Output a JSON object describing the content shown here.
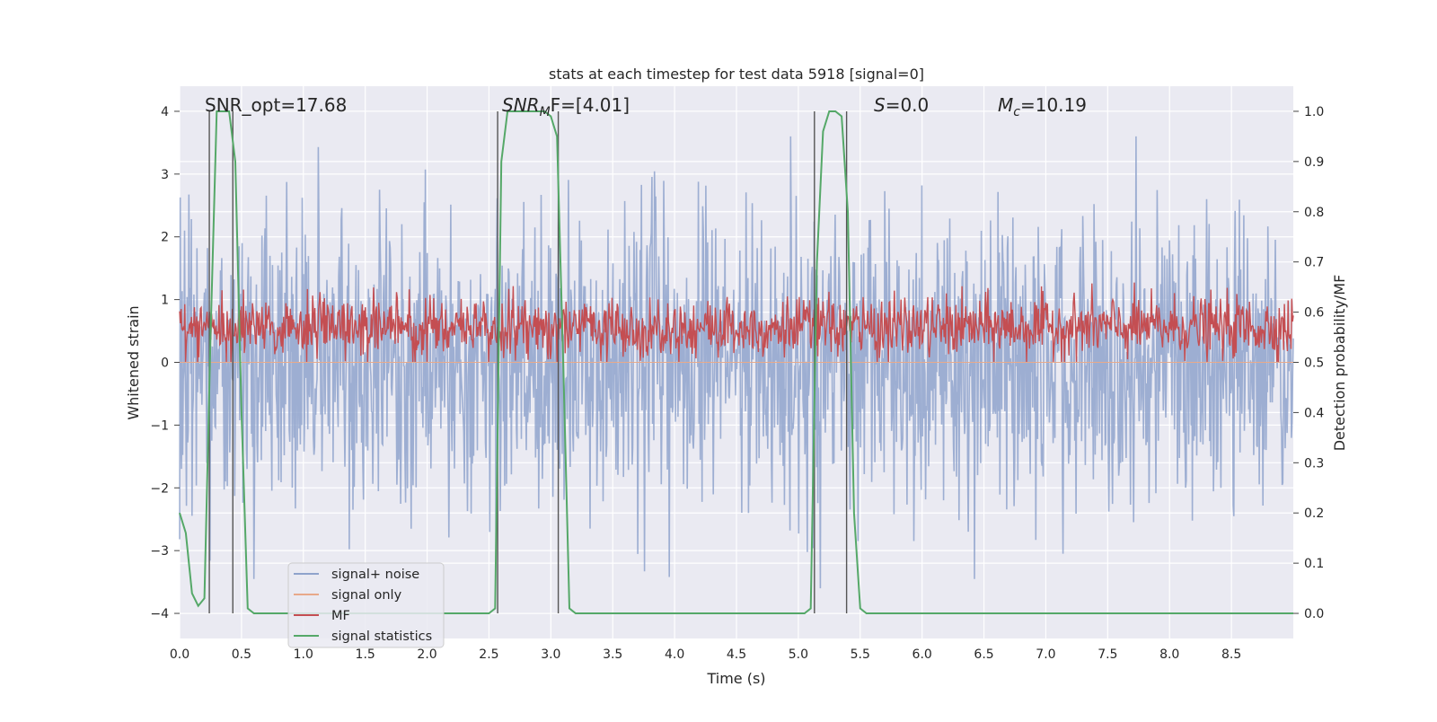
{
  "chart_data": {
    "type": "line",
    "title": "stats at each timestep for test data 5918 [signal=0]",
    "xlabel": "Time (s)",
    "ylabel_left": "Whitened strain",
    "ylabel_right": "Detection probability/MF",
    "xlim": [
      0,
      9.0
    ],
    "ylim_left": [
      -4.4,
      4.4
    ],
    "ylim_right": [
      -0.05,
      1.05
    ],
    "x_ticks": [
      "0.0",
      "0.5",
      "1.0",
      "1.5",
      "2.0",
      "2.5",
      "3.0",
      "3.5",
      "4.0",
      "4.5",
      "5.0",
      "5.5",
      "6.0",
      "6.5",
      "7.0",
      "7.5",
      "8.0",
      "8.5"
    ],
    "y_ticks_left": [
      "4",
      "3",
      "2",
      "1",
      "0",
      "−1",
      "−2",
      "−3",
      "−4"
    ],
    "y_ticks_right": [
      "1.0",
      "0.9",
      "0.8",
      "0.7",
      "0.6",
      "0.5",
      "0.4",
      "0.3",
      "0.2",
      "0.1",
      "0.0"
    ],
    "grid": true,
    "legend_position": "lower-left",
    "annotations": {
      "snr_opt": "SNR_opt=17.68",
      "snr_mf_base": "SNR",
      "snr_mf_sub": "M",
      "snr_mf_rest": "F=[4.01]",
      "s_var": "S",
      "s_rest": "=0.0",
      "mc_var": "M",
      "mc_sub": "c",
      "mc_rest": "=10.19"
    },
    "series": [
      {
        "name": "signal+ noise",
        "color": "#8fa3cc",
        "approx_range": [
          -3.6,
          3.6
        ],
        "note_level": "whitened strain noise"
      },
      {
        "name": "signal only",
        "color": "#e8a98a",
        "values": [
          0
        ]
      },
      {
        "name": "MF",
        "color": "#c44e52",
        "approx_range_right": [
          0.5,
          0.65
        ]
      },
      {
        "name": "signal statistics",
        "color": "#55a868",
        "x": [
          0.0,
          0.05,
          0.1,
          0.15,
          0.2,
          0.25,
          0.3,
          0.35,
          0.4,
          0.45,
          0.5,
          0.55,
          0.6,
          2.5,
          2.55,
          2.6,
          2.65,
          2.7,
          2.75,
          2.8,
          2.85,
          2.9,
          2.95,
          3.0,
          3.05,
          3.1,
          3.15,
          3.2,
          3.25,
          3.3,
          5.05,
          5.1,
          5.15,
          5.2,
          5.25,
          5.3,
          5.35,
          5.4,
          5.45,
          5.5,
          5.55,
          5.6,
          9.0
        ],
        "y": [
          0.2,
          0.16,
          0.04,
          0.015,
          0.03,
          0.55,
          1.0,
          1.0,
          1.0,
          0.9,
          0.4,
          0.01,
          0.0,
          0.0,
          0.01,
          0.9,
          1.0,
          1.0,
          1.0,
          1.0,
          1.0,
          1.0,
          1.0,
          0.99,
          0.95,
          0.5,
          0.01,
          0.0,
          0.0,
          0.0,
          0.0,
          0.01,
          0.7,
          0.96,
          1.0,
          1.0,
          0.99,
          0.8,
          0.2,
          0.01,
          0.0,
          0.0,
          0.0
        ]
      }
    ],
    "vertical_markers_s": [
      0.24,
      0.43,
      2.57,
      3.06,
      5.13,
      5.39
    ]
  }
}
